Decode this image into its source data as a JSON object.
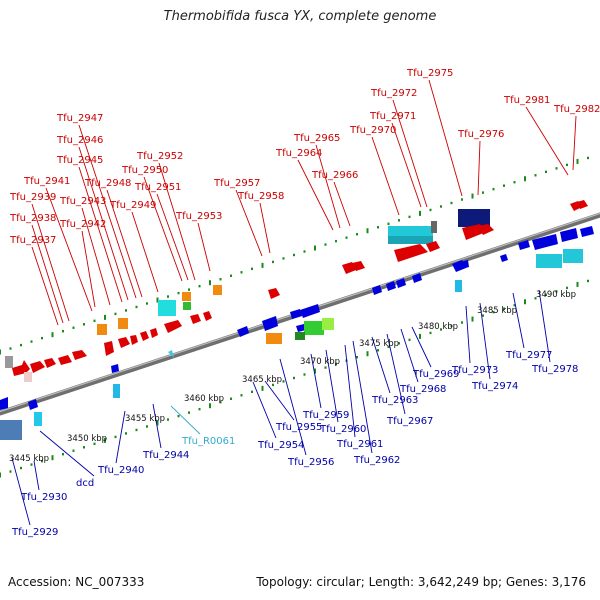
{
  "title": "Thermobifida fusca YX, complete genome",
  "accession": "Accession: NC_007333",
  "summary": "Topology: circular; Length: 3,642,249 bp; Genes: 3,176",
  "colors": {
    "top_label": "#cc0000",
    "bottom_label": "#0000aa",
    "rna_label": "#33aacc",
    "backbone": "#777777",
    "tick": "#1a8a1a"
  },
  "kbp_marks": [
    "3445 kbp",
    "3450 kbp",
    "3455 kbp",
    "3460 kbp",
    "3465 kbp",
    "3470 kbp",
    "3475 kbp",
    "3480 kbp",
    "3485 kbp",
    "3490 kbp"
  ],
  "top_labels": [
    "Tfu_2937",
    "Tfu_2938",
    "Tfu_2939",
    "Tfu_2941",
    "Tfu_2942",
    "Tfu_2943",
    "Tfu_2945",
    "Tfu_2946",
    "Tfu_2947",
    "Tfu_2948",
    "Tfu_2949",
    "Tfu_2950",
    "Tfu_2951",
    "Tfu_2952",
    "Tfu_2953",
    "Tfu_2957",
    "Tfu_2958",
    "Tfu_2964",
    "Tfu_2965",
    "Tfu_2966",
    "Tfu_2970",
    "Tfu_2971",
    "Tfu_2972",
    "Tfu_2975",
    "Tfu_2976",
    "Tfu_2981",
    "Tfu_2982"
  ],
  "bottom_labels": [
    "Tfu_2929",
    "Tfu_2930",
    "dcd",
    "Tfu_2940",
    "Tfu_2944",
    "Tfu_R0061",
    "Tfu_2954",
    "Tfu_2955",
    "Tfu_2956",
    "Tfu_2959",
    "Tfu_2960",
    "Tfu_2961",
    "Tfu_2962",
    "Tfu_2963",
    "Tfu_2967",
    "Tfu_2968",
    "Tfu_2969",
    "Tfu_2973",
    "Tfu_2974",
    "Tfu_2977",
    "Tfu_2978"
  ]
}
